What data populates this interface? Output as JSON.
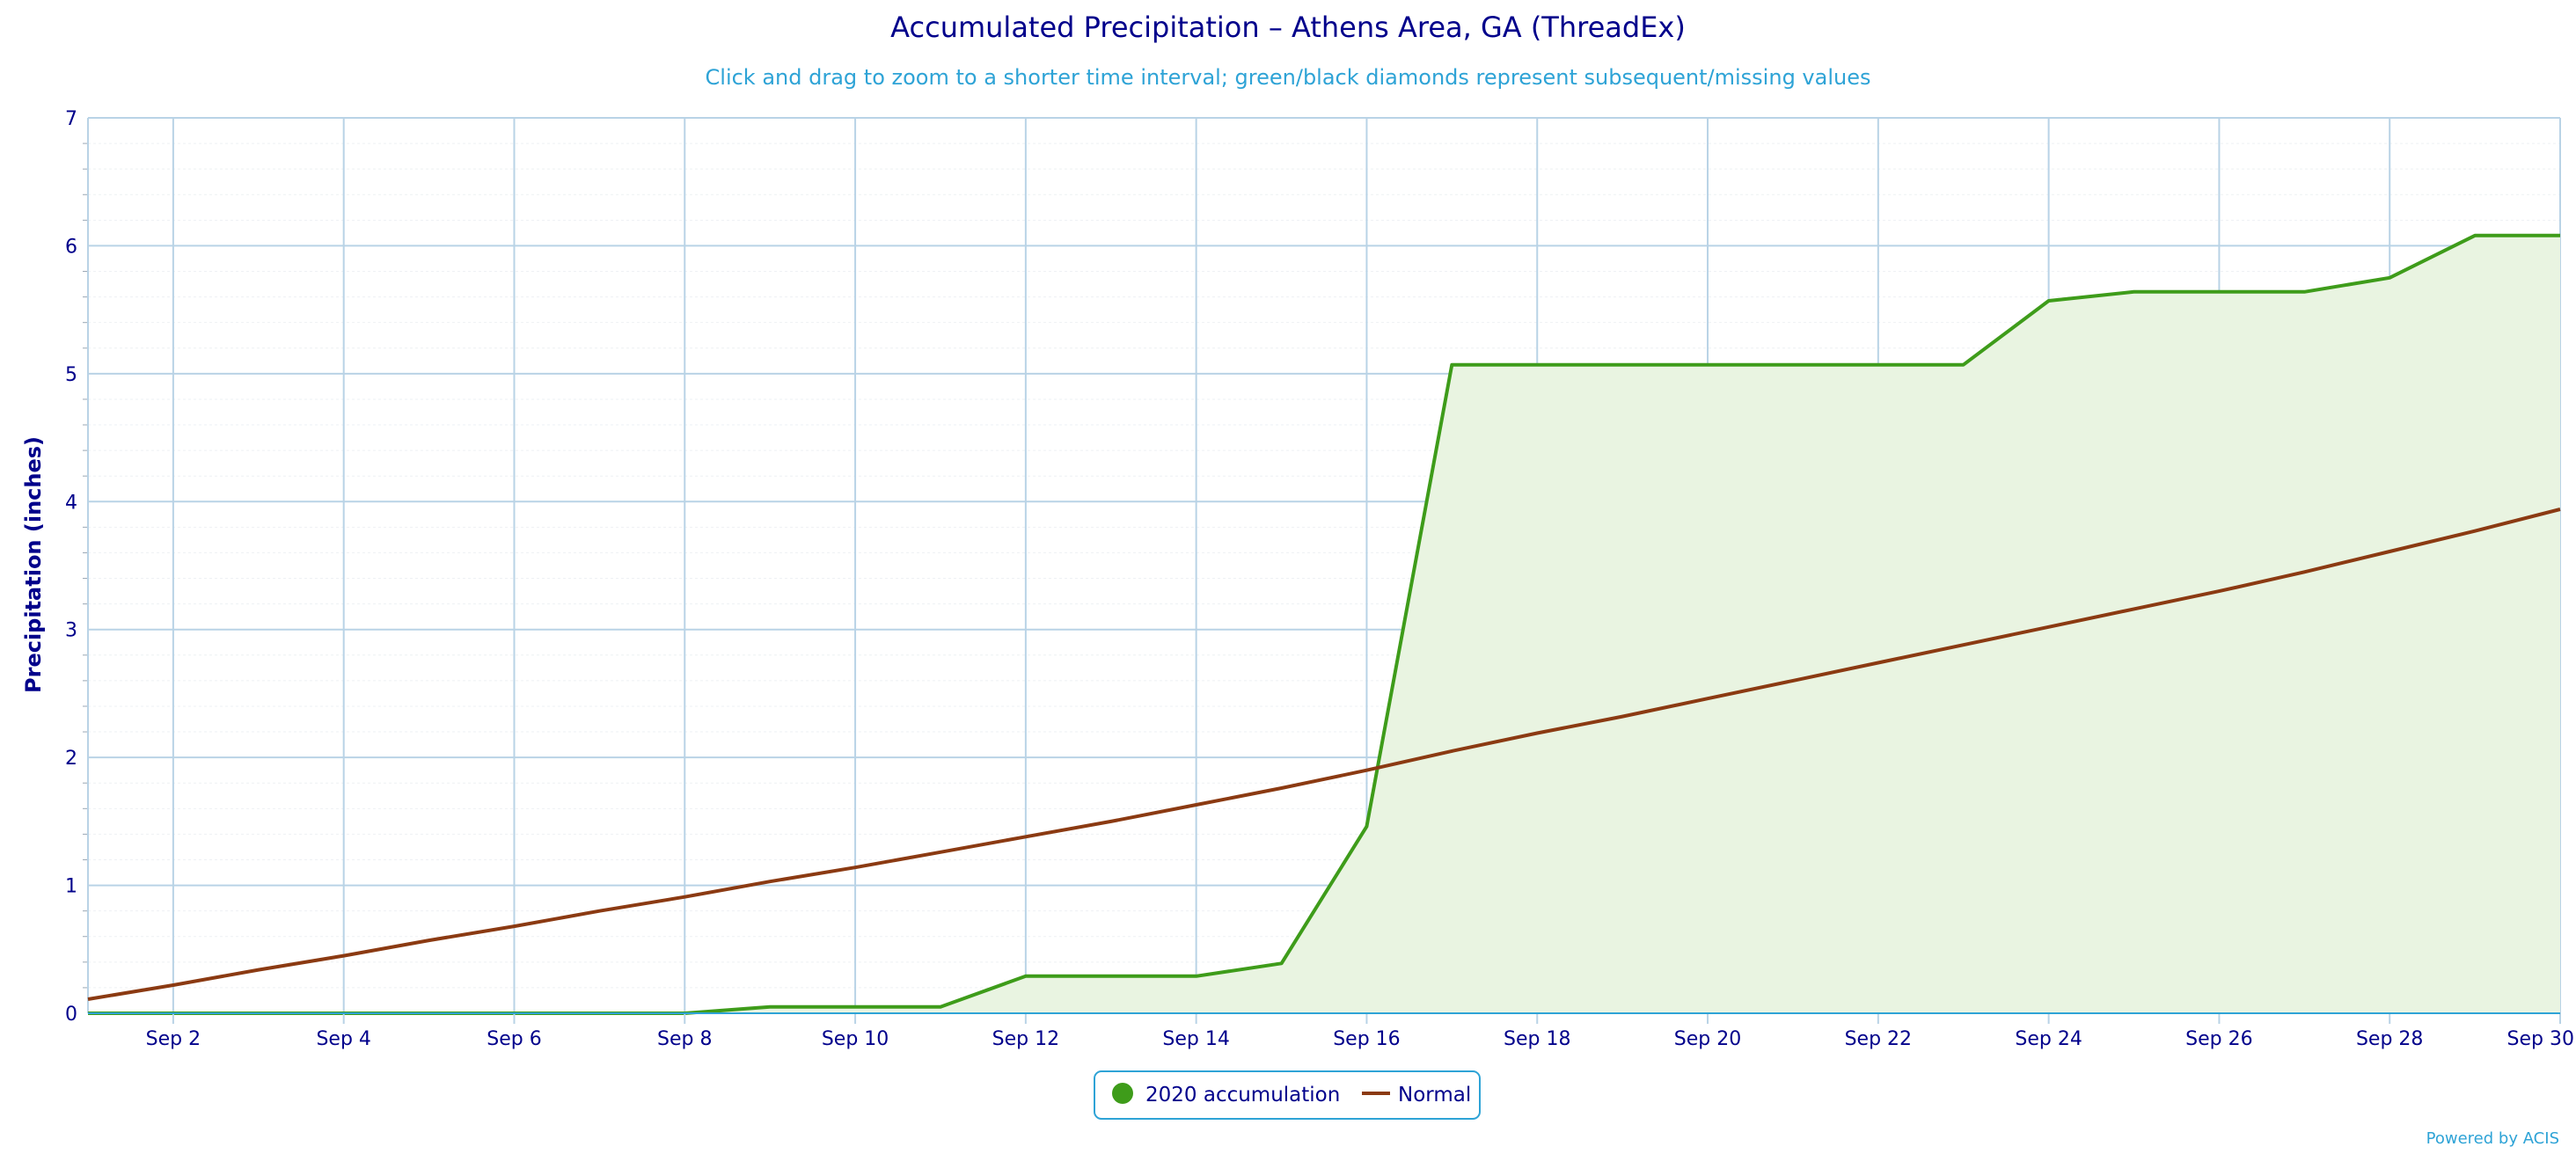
{
  "chart_data": {
    "type": "line",
    "title": "Accumulated Precipitation – Athens Area, GA (ThreadEx)",
    "subtitle": "Click and drag to zoom to a shorter time interval; green/black diamonds represent subsequent/missing values",
    "ylabel": "Precipitation (inches)",
    "xlabel": "",
    "xlim": [
      1,
      30
    ],
    "ylim": [
      0,
      7
    ],
    "y_ticks": [
      0,
      1,
      2,
      3,
      4,
      5,
      6,
      7
    ],
    "x_ticks": [
      {
        "x": 2,
        "label": "Sep 2"
      },
      {
        "x": 4,
        "label": "Sep 4"
      },
      {
        "x": 6,
        "label": "Sep 6"
      },
      {
        "x": 8,
        "label": "Sep 8"
      },
      {
        "x": 10,
        "label": "Sep 10"
      },
      {
        "x": 12,
        "label": "Sep 12"
      },
      {
        "x": 14,
        "label": "Sep 14"
      },
      {
        "x": 16,
        "label": "Sep 16"
      },
      {
        "x": 18,
        "label": "Sep 18"
      },
      {
        "x": 20,
        "label": "Sep 20"
      },
      {
        "x": 22,
        "label": "Sep 22"
      },
      {
        "x": 24,
        "label": "Sep 24"
      },
      {
        "x": 26,
        "label": "Sep 26"
      },
      {
        "x": 28,
        "label": "Sep 28"
      },
      {
        "x": 30,
        "label": "Sep 30"
      }
    ],
    "grid": true,
    "legend": "bottom-center",
    "series": [
      {
        "name": "2020 accumulation",
        "style": "area",
        "color": "#3e9c1a",
        "fill": "#e9f4e1",
        "x": [
          1,
          2,
          3,
          4,
          5,
          6,
          7,
          8,
          9,
          10,
          11,
          12,
          13,
          14,
          15,
          16,
          17,
          18,
          19,
          20,
          21,
          22,
          23,
          24,
          25,
          26,
          27,
          28,
          29,
          30
        ],
        "values": [
          0,
          0,
          0,
          0,
          0,
          0,
          0,
          0,
          0.05,
          0.05,
          0.05,
          0.29,
          0.29,
          0.29,
          0.39,
          1.46,
          5.07,
          5.07,
          5.07,
          5.07,
          5.07,
          5.07,
          5.07,
          5.57,
          5.64,
          5.64,
          5.64,
          5.75,
          6.08,
          6.08
        ]
      },
      {
        "name": "Normal",
        "style": "line",
        "color": "#8b3a12",
        "x": [
          1,
          2,
          3,
          4,
          5,
          6,
          7,
          8,
          9,
          10,
          11,
          12,
          13,
          14,
          15,
          16,
          17,
          18,
          19,
          20,
          21,
          22,
          23,
          24,
          25,
          26,
          27,
          28,
          29,
          30
        ],
        "values": [
          0.11,
          0.22,
          0.34,
          0.45,
          0.57,
          0.68,
          0.8,
          0.91,
          1.03,
          1.14,
          1.26,
          1.38,
          1.5,
          1.63,
          1.76,
          1.9,
          2.05,
          2.19,
          2.32,
          2.46,
          2.6,
          2.74,
          2.88,
          3.02,
          3.16,
          3.3,
          3.45,
          3.61,
          3.77,
          3.94
        ]
      }
    ]
  },
  "credits": "Powered by ACIS",
  "colors": {
    "title": "#00008b",
    "subtitle": "#2ea3d6",
    "axis_text": "#00008b",
    "grid_major": "#b9d3e6",
    "grid_minor": "#eef1f4",
    "legend_border": "#2ea3d6",
    "credits": "#2ea3d6",
    "x_axis": "#2ea3d6"
  }
}
